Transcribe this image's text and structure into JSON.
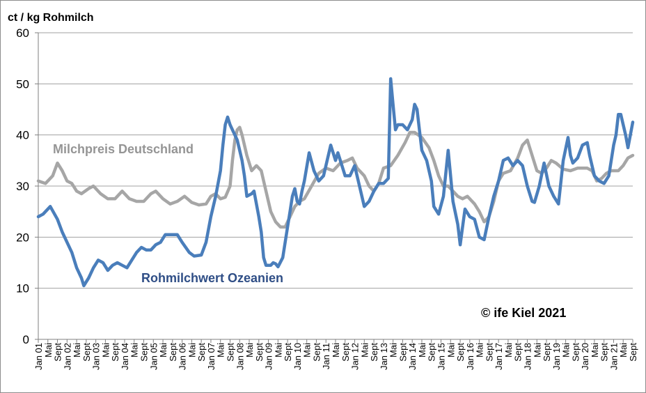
{
  "chart_data": {
    "type": "line",
    "ylabel": "ct / kg Rohmilch",
    "ylim": [
      0,
      60
    ],
    "yticks": [
      "0",
      "10",
      "20",
      "30",
      "40",
      "50",
      "60"
    ],
    "grid": "horizontal",
    "x_labels": [
      "Jan 01",
      "Mai",
      "Sept",
      "Jan 02",
      "Mai",
      "Sept",
      "Jan 03",
      "Mai",
      "Sept",
      "Jan 04",
      "Mai",
      "Sept",
      "Jan 05",
      "Mai",
      "Sept",
      "Jan 06",
      "Mai",
      "Sept",
      "Jan 07",
      "Mai",
      "Sept",
      "Jan 08",
      "Mai",
      "Sept",
      "Jan 09",
      "Mai",
      "Sept",
      "Jan 10",
      "Mai",
      "Sept",
      "Jan 11",
      "Mai",
      "Sept",
      "Jan 12",
      "Mai",
      "Sept",
      "Jan 13",
      "Mai",
      "Sept",
      "Jan 14",
      "Mai",
      "Sept",
      "Jan 15",
      "Mai",
      "Sept",
      "Jan 16",
      "Mai",
      "Sept",
      "Jan 17",
      "Mai",
      "Sept",
      "Jan 18",
      "Mai",
      "Sept",
      "Jan 19",
      "Mai",
      "Sept",
      "Jan 20",
      "Mai",
      "Sept",
      "Jan 21",
      "Mai",
      "Sept"
    ],
    "x_start": "2001-01",
    "x_end": "2021-09",
    "series": [
      {
        "name": "Rohmilchwert Ozeanien",
        "color": "#4a7ebb",
        "points": [
          [
            "2001-01",
            24
          ],
          [
            "2001-03",
            24.5
          ],
          [
            "2001-06",
            26
          ],
          [
            "2001-09",
            23.5
          ],
          [
            "2001-11",
            21
          ],
          [
            "2002-01",
            19
          ],
          [
            "2002-03",
            17
          ],
          [
            "2002-05",
            14
          ],
          [
            "2002-07",
            12
          ],
          [
            "2002-08",
            10.5
          ],
          [
            "2002-10",
            12
          ],
          [
            "2002-12",
            14
          ],
          [
            "2003-02",
            15.5
          ],
          [
            "2003-04",
            15
          ],
          [
            "2003-06",
            13.5
          ],
          [
            "2003-08",
            14.5
          ],
          [
            "2003-10",
            15
          ],
          [
            "2003-12",
            14.5
          ],
          [
            "2004-02",
            14
          ],
          [
            "2004-04",
            15.5
          ],
          [
            "2004-06",
            17
          ],
          [
            "2004-08",
            18
          ],
          [
            "2004-10",
            17.5
          ],
          [
            "2004-12",
            17.5
          ],
          [
            "2005-02",
            18.5
          ],
          [
            "2005-04",
            19
          ],
          [
            "2005-06",
            20.5
          ],
          [
            "2005-08",
            20.5
          ],
          [
            "2005-11",
            20.5
          ],
          [
            "2006-01",
            19
          ],
          [
            "2006-04",
            17
          ],
          [
            "2006-06",
            16.3
          ],
          [
            "2006-09",
            16.5
          ],
          [
            "2006-11",
            19
          ],
          [
            "2007-01",
            24
          ],
          [
            "2007-03",
            28
          ],
          [
            "2007-05",
            33
          ],
          [
            "2007-06",
            38
          ],
          [
            "2007-07",
            42
          ],
          [
            "2007-08",
            43.5
          ],
          [
            "2007-09",
            42
          ],
          [
            "2007-10",
            41
          ],
          [
            "2007-12",
            39
          ],
          [
            "2008-02",
            35
          ],
          [
            "2008-03",
            32
          ],
          [
            "2008-04",
            28
          ],
          [
            "2008-06",
            28.5
          ],
          [
            "2008-07",
            29
          ],
          [
            "2008-09",
            24
          ],
          [
            "2008-10",
            21
          ],
          [
            "2008-11",
            16
          ],
          [
            "2008-12",
            14.5
          ],
          [
            "2009-02",
            14.5
          ],
          [
            "2009-03",
            15
          ],
          [
            "2009-04",
            14.8
          ],
          [
            "2009-05",
            14.2
          ],
          [
            "2009-07",
            16
          ],
          [
            "2009-09",
            22
          ],
          [
            "2009-10",
            25
          ],
          [
            "2009-11",
            28
          ],
          [
            "2009-12",
            29.5
          ],
          [
            "2010-01",
            27
          ],
          [
            "2010-02",
            26.5
          ],
          [
            "2010-03",
            29
          ],
          [
            "2010-04",
            31
          ],
          [
            "2010-06",
            36.5
          ],
          [
            "2010-08",
            33
          ],
          [
            "2010-10",
            31
          ],
          [
            "2010-12",
            32
          ],
          [
            "2011-01",
            34
          ],
          [
            "2011-03",
            38
          ],
          [
            "2011-05",
            35
          ],
          [
            "2011-06",
            36.5
          ],
          [
            "2011-07",
            35
          ],
          [
            "2011-09",
            32
          ],
          [
            "2011-11",
            32
          ],
          [
            "2012-01",
            34
          ],
          [
            "2012-03",
            30
          ],
          [
            "2012-05",
            26
          ],
          [
            "2012-07",
            27
          ],
          [
            "2012-09",
            29
          ],
          [
            "2012-11",
            30.5
          ],
          [
            "2013-01",
            30.5
          ],
          [
            "2013-03",
            31.5
          ],
          [
            "2013-04",
            51
          ],
          [
            "2013-05",
            46
          ],
          [
            "2013-06",
            41
          ],
          [
            "2013-07",
            42
          ],
          [
            "2013-09",
            42
          ],
          [
            "2013-11",
            41
          ],
          [
            "2014-01",
            43
          ],
          [
            "2014-02",
            46
          ],
          [
            "2014-03",
            45
          ],
          [
            "2014-04",
            41
          ],
          [
            "2014-05",
            37
          ],
          [
            "2014-07",
            35
          ],
          [
            "2014-09",
            31
          ],
          [
            "2014-10",
            26
          ],
          [
            "2014-12",
            24.5
          ],
          [
            "2015-02",
            28
          ],
          [
            "2015-04",
            37
          ],
          [
            "2015-05",
            32
          ],
          [
            "2015-06",
            27
          ],
          [
            "2015-08",
            22.5
          ],
          [
            "2015-09",
            18.5
          ],
          [
            "2015-10",
            22
          ],
          [
            "2015-11",
            25.5
          ],
          [
            "2016-01",
            24
          ],
          [
            "2016-03",
            23.5
          ],
          [
            "2016-05",
            20
          ],
          [
            "2016-07",
            19.5
          ],
          [
            "2016-09",
            24
          ],
          [
            "2016-11",
            28
          ],
          [
            "2017-01",
            31
          ],
          [
            "2017-03",
            35
          ],
          [
            "2017-05",
            35.5
          ],
          [
            "2017-07",
            34
          ],
          [
            "2017-09",
            35
          ],
          [
            "2017-11",
            34
          ],
          [
            "2018-01",
            30
          ],
          [
            "2018-03",
            27
          ],
          [
            "2018-04",
            26.8
          ],
          [
            "2018-06",
            30
          ],
          [
            "2018-08",
            34.5
          ],
          [
            "2018-10",
            30
          ],
          [
            "2018-12",
            28
          ],
          [
            "2019-02",
            26.5
          ],
          [
            "2019-04",
            35
          ],
          [
            "2019-06",
            39.5
          ],
          [
            "2019-07",
            36
          ],
          [
            "2019-08",
            34.5
          ],
          [
            "2019-10",
            35.5
          ],
          [
            "2019-12",
            38
          ],
          [
            "2020-02",
            38.5
          ],
          [
            "2020-03",
            36
          ],
          [
            "2020-05",
            32
          ],
          [
            "2020-07",
            31
          ],
          [
            "2020-09",
            30.5
          ],
          [
            "2020-11",
            32
          ],
          [
            "2021-01",
            38
          ],
          [
            "2021-02",
            40
          ],
          [
            "2021-03",
            44
          ],
          [
            "2021-04",
            44
          ],
          [
            "2021-06",
            40
          ],
          [
            "2021-07",
            37.5
          ],
          [
            "2021-09",
            42.5
          ]
        ]
      },
      {
        "name": "Milchpreis Deutschland",
        "color": "#a6a6a6",
        "points": [
          [
            "2001-01",
            31
          ],
          [
            "2001-04",
            30.5
          ],
          [
            "2001-07",
            32
          ],
          [
            "2001-09",
            34.5
          ],
          [
            "2001-11",
            33
          ],
          [
            "2002-01",
            31
          ],
          [
            "2002-03",
            30.5
          ],
          [
            "2002-05",
            29
          ],
          [
            "2002-07",
            28.5
          ],
          [
            "2002-10",
            29.5
          ],
          [
            "2002-12",
            30
          ],
          [
            "2003-03",
            28.5
          ],
          [
            "2003-06",
            27.5
          ],
          [
            "2003-09",
            27.5
          ],
          [
            "2003-12",
            29
          ],
          [
            "2004-03",
            27.5
          ],
          [
            "2004-06",
            27
          ],
          [
            "2004-09",
            27
          ],
          [
            "2004-12",
            28.5
          ],
          [
            "2005-02",
            29
          ],
          [
            "2005-05",
            27.5
          ],
          [
            "2005-08",
            26.5
          ],
          [
            "2005-11",
            27
          ],
          [
            "2006-02",
            28
          ],
          [
            "2006-05",
            26.8
          ],
          [
            "2006-08",
            26.3
          ],
          [
            "2006-11",
            26.5
          ],
          [
            "2007-01",
            28
          ],
          [
            "2007-03",
            28.5
          ],
          [
            "2007-05",
            27.5
          ],
          [
            "2007-07",
            27.8
          ],
          [
            "2007-09",
            30
          ],
          [
            "2007-10",
            35
          ],
          [
            "2007-11",
            39
          ],
          [
            "2007-12",
            41
          ],
          [
            "2008-01",
            41.5
          ],
          [
            "2008-02",
            40
          ],
          [
            "2008-04",
            36
          ],
          [
            "2008-06",
            33
          ],
          [
            "2008-08",
            34
          ],
          [
            "2008-10",
            33
          ],
          [
            "2008-12",
            29
          ],
          [
            "2009-02",
            25
          ],
          [
            "2009-04",
            23
          ],
          [
            "2009-06",
            22
          ],
          [
            "2009-08",
            22
          ],
          [
            "2009-10",
            24
          ],
          [
            "2009-12",
            26
          ],
          [
            "2010-02",
            27
          ],
          [
            "2010-04",
            27.5
          ],
          [
            "2010-07",
            30
          ],
          [
            "2010-10",
            32.5
          ],
          [
            "2011-01",
            33.5
          ],
          [
            "2011-04",
            33
          ],
          [
            "2011-07",
            34.5
          ],
          [
            "2011-10",
            35
          ],
          [
            "2011-12",
            35.5
          ],
          [
            "2012-02",
            33.5
          ],
          [
            "2012-05",
            32
          ],
          [
            "2012-07",
            30
          ],
          [
            "2012-09",
            29
          ],
          [
            "2012-11",
            30.5
          ],
          [
            "2013-01",
            33.5
          ],
          [
            "2013-04",
            34
          ],
          [
            "2013-07",
            36
          ],
          [
            "2013-10",
            38.5
          ],
          [
            "2013-12",
            40.5
          ],
          [
            "2014-02",
            40.5
          ],
          [
            "2014-05",
            39.5
          ],
          [
            "2014-08",
            37.5
          ],
          [
            "2014-10",
            35
          ],
          [
            "2014-12",
            32
          ],
          [
            "2015-02",
            30
          ],
          [
            "2015-04",
            30
          ],
          [
            "2015-06",
            29
          ],
          [
            "2015-08",
            28
          ],
          [
            "2015-10",
            27.5
          ],
          [
            "2015-12",
            28
          ],
          [
            "2016-03",
            26.5
          ],
          [
            "2016-05",
            25
          ],
          [
            "2016-07",
            23
          ],
          [
            "2016-09",
            24
          ],
          [
            "2016-11",
            27
          ],
          [
            "2017-01",
            31
          ],
          [
            "2017-03",
            32.5
          ],
          [
            "2017-06",
            33
          ],
          [
            "2017-09",
            35.5
          ],
          [
            "2017-11",
            38
          ],
          [
            "2018-01",
            39
          ],
          [
            "2018-03",
            36
          ],
          [
            "2018-05",
            33
          ],
          [
            "2018-07",
            32.5
          ],
          [
            "2018-09",
            33.5
          ],
          [
            "2018-11",
            35
          ],
          [
            "2019-01",
            34.5
          ],
          [
            "2019-04",
            33.3
          ],
          [
            "2019-07",
            33
          ],
          [
            "2019-10",
            33.5
          ],
          [
            "2019-12",
            33.5
          ],
          [
            "2020-02",
            33.5
          ],
          [
            "2020-04",
            33
          ],
          [
            "2020-06",
            31
          ],
          [
            "2020-08",
            31.5
          ],
          [
            "2020-10",
            32.5
          ],
          [
            "2020-12",
            33
          ],
          [
            "2021-03",
            33
          ],
          [
            "2021-05",
            34
          ],
          [
            "2021-07",
            35.5
          ],
          [
            "2021-09",
            36
          ]
        ]
      }
    ],
    "annotations": [
      {
        "text": "Milchpreis Deutschland",
        "series": "Milchpreis Deutschland"
      },
      {
        "text": "Rohmilchwert Ozeanien",
        "series": "Rohmilchwert Ozeanien"
      },
      {
        "text": "© ife Kiel 2021"
      }
    ]
  }
}
